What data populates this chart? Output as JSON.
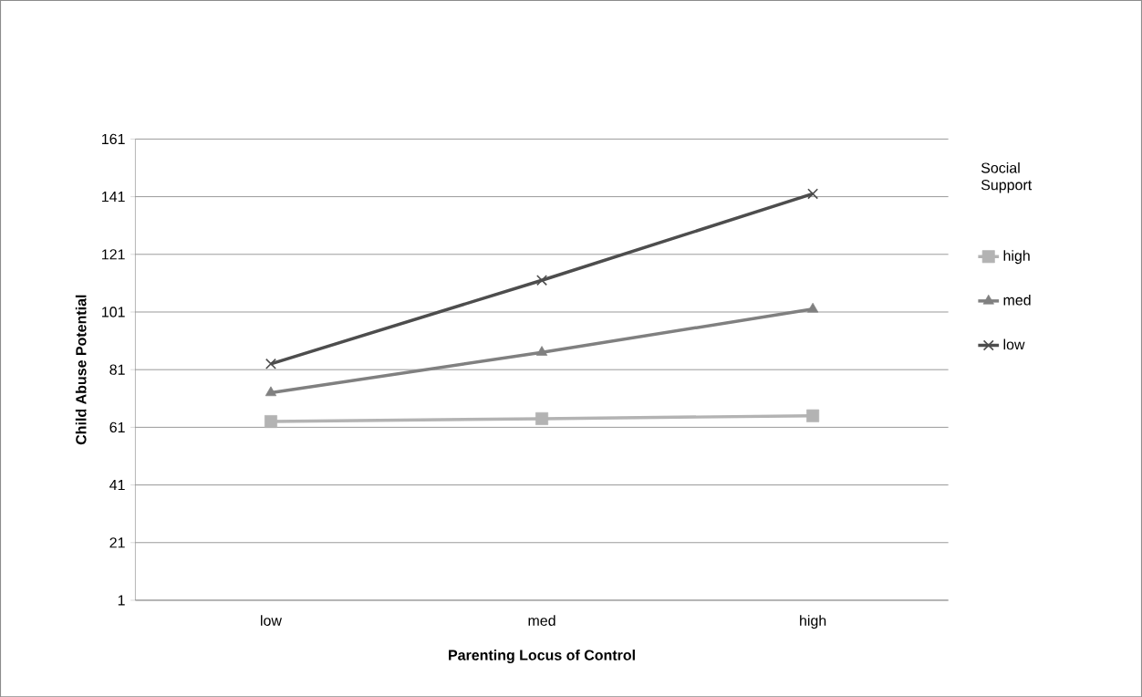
{
  "chart_data": {
    "type": "line",
    "xlabel": "Parenting Locus of Control",
    "ylabel": "Child Abuse Potential",
    "legend_title": "Social Support",
    "categories": [
      "low",
      "med",
      "high"
    ],
    "series": [
      {
        "name": "high",
        "color": "#b3b3b3",
        "marker": "square",
        "values": [
          63,
          64,
          65
        ]
      },
      {
        "name": "med",
        "color": "#808080",
        "marker": "triangle",
        "values": [
          73,
          87,
          102
        ]
      },
      {
        "name": "low",
        "color": "#4d4d4d",
        "marker": "cross",
        "values": [
          83,
          112,
          142
        ]
      }
    ],
    "ylim": [
      1,
      161
    ],
    "yticks": [
      1,
      21,
      41,
      61,
      81,
      101,
      121,
      141,
      161
    ],
    "grid": "y",
    "legend": "right"
  }
}
